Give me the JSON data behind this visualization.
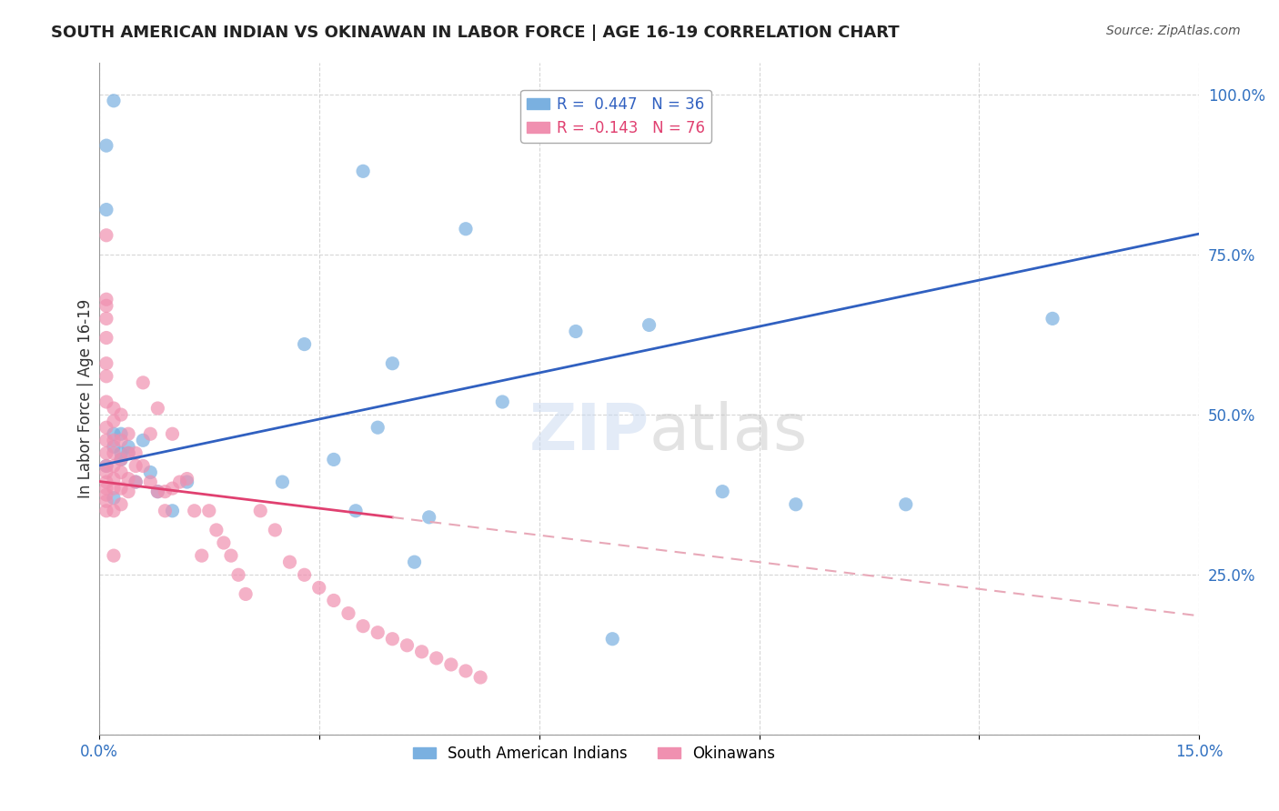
{
  "title": "SOUTH AMERICAN INDIAN VS OKINAWAN IN LABOR FORCE | AGE 16-19 CORRELATION CHART",
  "source": "Source: ZipAtlas.com",
  "ylabel": "In Labor Force | Age 16-19",
  "xlabel": "",
  "xlim": [
    0.0,
    0.15
  ],
  "ylim": [
    0.0,
    1.05
  ],
  "yticks": [
    0.0,
    0.25,
    0.5,
    0.75,
    1.0
  ],
  "ytick_labels": [
    "",
    "25.0%",
    "50.0%",
    "75.0%",
    "100.0%"
  ],
  "xticks": [
    0.0,
    0.03,
    0.06,
    0.09,
    0.12,
    0.15
  ],
  "xtick_labels": [
    "0.0%",
    "",
    "",
    "",
    "",
    "15.0%"
  ],
  "blue_R": 0.447,
  "blue_N": 36,
  "pink_R": -0.143,
  "pink_N": 76,
  "blue_color": "#7ab0e0",
  "pink_color": "#f090b0",
  "blue_line_color": "#3060c0",
  "pink_line_color": "#e04070",
  "pink_line_dashed_color": "#e8a8b8",
  "watermark": "ZIPatlas",
  "background_color": "#ffffff",
  "blue_scatter_x": [
    0.036,
    0.05,
    0.001,
    0.002,
    0.003,
    0.004,
    0.001,
    0.003,
    0.005,
    0.007,
    0.025,
    0.038,
    0.04,
    0.002,
    0.028,
    0.032,
    0.055,
    0.002,
    0.003,
    0.004,
    0.006,
    0.008,
    0.01,
    0.012,
    0.065,
    0.075,
    0.085,
    0.095,
    0.035,
    0.045,
    0.043,
    0.07,
    0.11,
    0.13,
    0.002,
    0.001
  ],
  "blue_scatter_y": [
    0.88,
    0.79,
    0.82,
    0.47,
    0.43,
    0.45,
    0.42,
    0.44,
    0.395,
    0.41,
    0.395,
    0.48,
    0.58,
    0.37,
    0.61,
    0.43,
    0.52,
    0.45,
    0.47,
    0.44,
    0.46,
    0.38,
    0.35,
    0.395,
    0.63,
    0.64,
    0.38,
    0.36,
    0.35,
    0.34,
    0.27,
    0.15,
    0.36,
    0.65,
    0.99,
    0.92
  ],
  "pink_scatter_x": [
    0.001,
    0.001,
    0.001,
    0.001,
    0.001,
    0.001,
    0.001,
    0.001,
    0.001,
    0.001,
    0.001,
    0.001,
    0.001,
    0.001,
    0.001,
    0.001,
    0.001,
    0.001,
    0.002,
    0.002,
    0.002,
    0.002,
    0.002,
    0.002,
    0.002,
    0.002,
    0.002,
    0.003,
    0.003,
    0.003,
    0.003,
    0.003,
    0.003,
    0.004,
    0.004,
    0.004,
    0.004,
    0.005,
    0.005,
    0.005,
    0.006,
    0.006,
    0.007,
    0.007,
    0.008,
    0.008,
    0.009,
    0.009,
    0.01,
    0.01,
    0.011,
    0.012,
    0.013,
    0.014,
    0.015,
    0.016,
    0.017,
    0.018,
    0.019,
    0.02,
    0.022,
    0.024,
    0.026,
    0.028,
    0.03,
    0.032,
    0.034,
    0.036,
    0.038,
    0.04,
    0.042,
    0.044,
    0.046,
    0.048,
    0.05,
    0.052
  ],
  "pink_scatter_y": [
    0.78,
    0.68,
    0.67,
    0.65,
    0.62,
    0.58,
    0.56,
    0.52,
    0.48,
    0.46,
    0.44,
    0.42,
    0.41,
    0.395,
    0.385,
    0.375,
    0.365,
    0.35,
    0.51,
    0.49,
    0.46,
    0.44,
    0.42,
    0.4,
    0.385,
    0.35,
    0.28,
    0.5,
    0.46,
    0.43,
    0.41,
    0.385,
    0.36,
    0.47,
    0.44,
    0.4,
    0.38,
    0.44,
    0.42,
    0.395,
    0.55,
    0.42,
    0.47,
    0.395,
    0.51,
    0.38,
    0.38,
    0.35,
    0.47,
    0.385,
    0.395,
    0.4,
    0.35,
    0.28,
    0.35,
    0.32,
    0.3,
    0.28,
    0.25,
    0.22,
    0.35,
    0.32,
    0.27,
    0.25,
    0.23,
    0.21,
    0.19,
    0.17,
    0.16,
    0.15,
    0.14,
    0.13,
    0.12,
    0.11,
    0.1,
    0.09
  ]
}
